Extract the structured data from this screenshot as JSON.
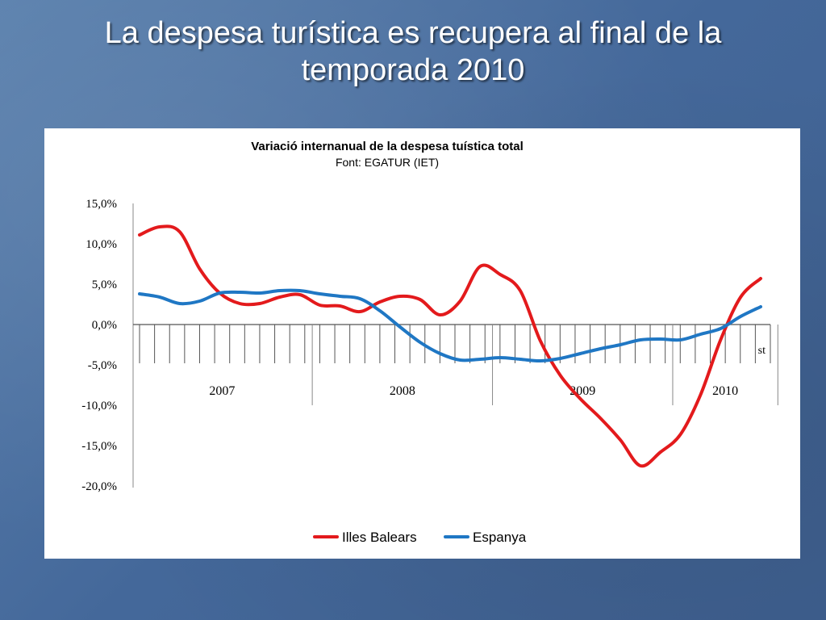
{
  "slide": {
    "title_line1": "La despesa turística es recupera al final de la",
    "title_line2": "temporada 2010"
  },
  "chart_data": {
    "type": "line",
    "title": "Variació internanual de la despesa tuística total",
    "subtitle": "Font: EGATUR (IET)",
    "xlabel": "",
    "ylabel": "",
    "ylim": [
      -20,
      15
    ],
    "y_tick_values": [
      15,
      10,
      5,
      0,
      -5,
      -10,
      -15,
      -20
    ],
    "y_tick_labels": [
      "15,0%",
      "10,0%",
      "5,0%",
      "0,0%",
      "-5,0%",
      "-10,0%",
      "-15,0%",
      "-20,0%"
    ],
    "x_groups": [
      "2007",
      "2008",
      "2009",
      "2010"
    ],
    "x_groups_months": [
      12,
      12,
      12,
      7
    ],
    "x_annotation": "st",
    "x": [
      "2007-01",
      "2007-02",
      "2007-03",
      "2007-04",
      "2007-05",
      "2007-06",
      "2007-07",
      "2007-08",
      "2007-09",
      "2007-10",
      "2007-11",
      "2007-12",
      "2008-01",
      "2008-02",
      "2008-03",
      "2008-04",
      "2008-05",
      "2008-06",
      "2008-07",
      "2008-08",
      "2008-09",
      "2008-10",
      "2008-11",
      "2008-12",
      "2009-01",
      "2009-02",
      "2009-03",
      "2009-04",
      "2009-05",
      "2009-06",
      "2009-07",
      "2009-08",
      "2009-09",
      "2009-10",
      "2009-11",
      "2009-12",
      "2010-01",
      "2010-02",
      "2010-03",
      "2010-04",
      "2010-05",
      "2010-06",
      "2010-07"
    ],
    "series": [
      {
        "name": "Illes Balears",
        "color": "#e31a1c",
        "values": [
          11.1,
          12.1,
          11.5,
          6.9,
          3.9,
          2.6,
          2.6,
          3.4,
          3.7,
          2.4,
          2.3,
          1.6,
          2.8,
          3.5,
          3.1,
          1.2,
          2.9,
          7.2,
          6.2,
          4.2,
          -2.0,
          -6.3,
          -9.2,
          -11.6,
          -14.3,
          -17.5,
          -15.8,
          -13.6,
          -8.7,
          -1.9,
          3.4,
          5.7,
          5.7,
          5.7,
          5.7,
          5.7,
          5.7,
          5.7,
          5.7,
          5.7,
          5.7,
          5.7,
          5.7
        ]
      },
      {
        "name": "Espanya",
        "color": "#1f77c4",
        "values": [
          3.8,
          3.4,
          2.6,
          2.9,
          3.9,
          4.0,
          3.9,
          4.2,
          4.2,
          3.8,
          3.5,
          3.2,
          1.7,
          -0.3,
          -2.2,
          -3.6,
          -4.4,
          -4.3,
          -4.1,
          -4.3,
          -4.5,
          -4.2,
          -3.6,
          -3.0,
          -2.5,
          -1.9,
          -1.8,
          -1.9,
          -1.2,
          -0.5,
          1.0,
          2.2,
          3.0,
          3.2,
          3.2,
          3.2,
          3.2,
          3.2,
          3.2,
          3.2,
          3.2,
          3.2,
          3.2
        ]
      }
    ],
    "legend_position": "bottom",
    "grid": false
  }
}
